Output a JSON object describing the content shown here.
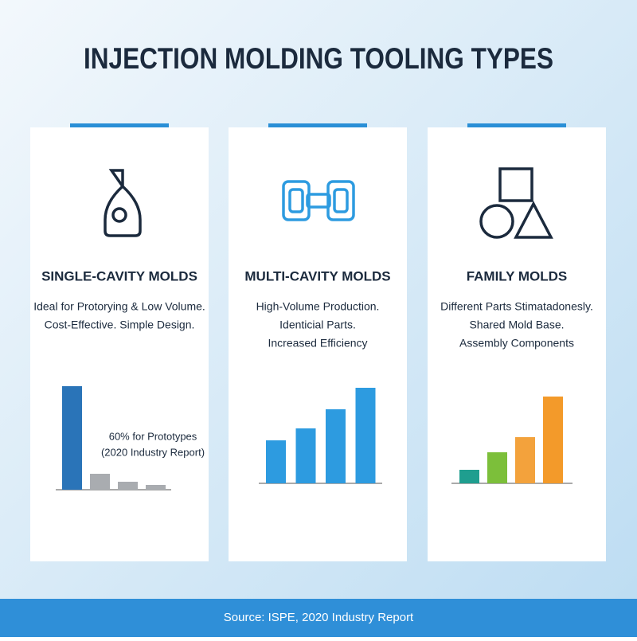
{
  "title": "INJECTION MOLDING TOOLING TYPES",
  "cards": [
    {
      "title": "SINGLE-CAVITY MOLDS",
      "lines": [
        "Ideal for Protorying & Low Volume.",
        "Cost-Effective. Simple Design."
      ],
      "chart": {
        "values": [
          130,
          20,
          10,
          6
        ],
        "colors": [
          "#2a74b8",
          "#a9acb0",
          "#a9acb0",
          "#a9acb0"
        ],
        "annotation": [
          "60% for Prototypes",
          "(2020 Industry Report)"
        ]
      }
    },
    {
      "title": "MULTI-CAVITY MOLDS",
      "lines": [
        "High-Volume Production.",
        "Identicial Parts.",
        "Increased Efficiency"
      ],
      "chart": {
        "values": [
          54,
          69,
          93,
          120
        ],
        "colors": [
          "#2d9be0",
          "#2d9be0",
          "#2d9be0",
          "#2d9be0"
        ]
      }
    },
    {
      "title": "FAMILY MOLDS",
      "lines": [
        "Different Parts Stimatadonesly.",
        "Shared Mold Base.",
        "Assembly Components"
      ],
      "chart": {
        "values": [
          17,
          39,
          58,
          109
        ],
        "colors": [
          "#1f9e8f",
          "#7cbf3a",
          "#f3a23c",
          "#f39a2a"
        ]
      }
    }
  ],
  "source": "Source: ISPE, 2020 Industry Report"
}
